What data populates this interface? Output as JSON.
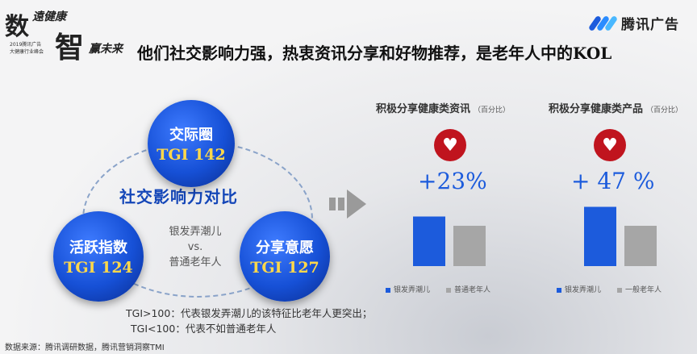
{
  "event_logo": {
    "chars": [
      "数",
      "智",
      "遠健康",
      "赢未来"
    ],
    "line1": "2019腾讯广告",
    "line2": "大健康行业峰会"
  },
  "brand": {
    "name": "腾讯广告",
    "colors": [
      "#1c5bdc",
      "#2a8cff",
      "#49b8ff"
    ]
  },
  "title": "他们社交影响力强，热衷资讯分享和好物推荐，是老年人中的KOL",
  "diagram": {
    "center": "社交影响力对比",
    "circles": [
      {
        "label": "交际圈",
        "tgi": "TGI 142"
      },
      {
        "label": "活跃指数",
        "tgi": "TGI 124"
      },
      {
        "label": "分享意愿",
        "tgi": "TGI 127"
      }
    ],
    "vs": {
      "a": "银发弄潮儿",
      "b": "vs.",
      "c": "普通老年人"
    }
  },
  "notes": [
    "TGI>100：代表银发弄潮儿的该特征比老年人更突出；",
    "TGI<100：代表不如普通老年人"
  ],
  "source": "数据来源：腾讯调研数据，腾讯营销洞察TMI",
  "icons": {
    "heart": "heart-icon",
    "arrow": "right-arrow-icon"
  },
  "colors": {
    "accent": "#1c5bdc",
    "grey": "#a6a6a6",
    "heart": "#c0141e",
    "tgi": "#ffd84a"
  },
  "chart_data": [
    {
      "type": "bar",
      "title": "积极分享健康类资讯",
      "unit_note": "（百分比）",
      "annotation": "+23%",
      "series": [
        {
          "name": "银发弄潮儿",
          "values": [
            123
          ]
        },
        {
          "name": "普通老年人",
          "values": [
            100
          ]
        }
      ],
      "legend": [
        "银发弄潮儿",
        "普通老年人"
      ]
    },
    {
      "type": "bar",
      "title": "积极分享健康类产品",
      "unit_note": "（百分比）",
      "annotation": "+ 47 %",
      "series": [
        {
          "name": "银发弄潮儿",
          "values": [
            147
          ]
        },
        {
          "name": "一般老年人",
          "values": [
            100
          ]
        }
      ],
      "legend": [
        "银发弄潮儿",
        "一般老年人"
      ]
    }
  ]
}
